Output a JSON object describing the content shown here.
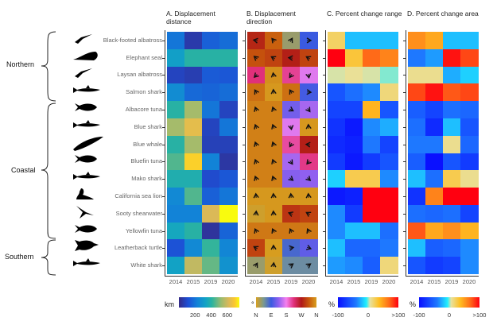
{
  "groups": [
    "Northern",
    "Coastal",
    "Southern"
  ],
  "species": [
    "Black-footed albatross",
    "Elephant seal",
    "Laysan albatross",
    "Salmon shark",
    "Albacore tuna",
    "Blue shark",
    "Blue whale",
    "Bluefin tuna",
    "Mako shark",
    "California sea lion",
    "Sooty shearwater",
    "Yellowfin tuna",
    "Leatherback turtle",
    "White shark"
  ],
  "species_icons": [
    "albatross-silhouette-icon",
    "elephant-seal-silhouette-icon",
    "albatross-silhouette-icon",
    "shark-silhouette-icon",
    "tuna-silhouette-icon",
    "shark-silhouette-icon",
    "whale-silhouette-icon",
    "tuna-silhouette-icon",
    "shark-silhouette-icon",
    "sea-lion-silhouette-icon",
    "shearwater-silhouette-icon",
    "tuna-silhouette-icon",
    "turtle-silhouette-icon",
    "shark-silhouette-icon"
  ],
  "years": [
    "2014",
    "2015",
    "2019",
    "2020"
  ],
  "chart_data": [
    {
      "type": "heatmap",
      "title": "A. Displacement distance",
      "unit": "km",
      "colormap": "parula",
      "range": [
        0,
        750
      ],
      "legend_ticks": [
        "200",
        "400",
        "600"
      ],
      "legend_tick_values": [
        200,
        400,
        600
      ],
      "values": [
        [
          200,
          50,
          150,
          180
        ],
        [
          320,
          400,
          400,
          400
        ],
        [
          80,
          60,
          140,
          130
        ],
        [
          260,
          170,
          160,
          180
        ],
        [
          400,
          540,
          200,
          80
        ],
        [
          540,
          640,
          80,
          200
        ],
        [
          400,
          540,
          70,
          70
        ],
        [
          450,
          700,
          230,
          40
        ],
        [
          380,
          380,
          100,
          130
        ],
        [
          250,
          450,
          150,
          200
        ],
        [
          230,
          230,
          620,
          750
        ],
        [
          350,
          400,
          30,
          160
        ],
        [
          120,
          250,
          420,
          240
        ],
        [
          330,
          580,
          470,
          280
        ]
      ]
    },
    {
      "type": "heatmap",
      "title": "B. Displacement direction",
      "unit": "°",
      "colormap": "cyclic",
      "range": [
        0,
        360
      ],
      "legend_ticks": [
        "N",
        "E",
        "S",
        "W",
        "N"
      ],
      "legend_tick_values": [
        0,
        90,
        180,
        270,
        360
      ],
      "values": [
        [
          280,
          320,
          30,
          90
        ],
        [
          310,
          300,
          275,
          300
        ],
        [
          225,
          350,
          215,
          170
        ],
        [
          330,
          355,
          330,
          95
        ],
        [
          340,
          340,
          120,
          145
        ],
        [
          340,
          340,
          170,
          355
        ],
        [
          340,
          340,
          210,
          275
        ],
        [
          340,
          340,
          145,
          220
        ],
        [
          340,
          340,
          130,
          135
        ],
        [
          355,
          355,
          355,
          355
        ],
        [
          5,
          355,
          290,
          300
        ],
        [
          335,
          335,
          335,
          335
        ],
        [
          300,
          358,
          80,
          110
        ],
        [
          30,
          5,
          55,
          55
        ]
      ]
    },
    {
      "type": "heatmap",
      "title": "C. Percent change range",
      "unit": "%",
      "colormap": "diverging",
      "range": [
        -100,
        100
      ],
      "legend_ticks": [
        "-100",
        "0",
        ">100"
      ],
      "legend_tick_values": [
        -100,
        0,
        100
      ],
      "values": [
        [
          20,
          -20,
          -20,
          -20
        ],
        [
          150,
          30,
          70,
          60
        ],
        [
          5,
          8,
          5,
          0
        ],
        [
          -60,
          -45,
          -35,
          15
        ],
        [
          -70,
          -70,
          40,
          -60
        ],
        [
          -80,
          -95,
          -35,
          -25
        ],
        [
          -85,
          -90,
          -40,
          -70
        ],
        [
          -75,
          -95,
          -75,
          -60
        ],
        [
          -15,
          25,
          25,
          -35
        ],
        [
          -95,
          -90,
          150,
          150
        ],
        [
          -35,
          -75,
          150,
          150
        ],
        [
          -35,
          -20,
          -20,
          -45
        ],
        [
          -20,
          -50,
          -50,
          -40
        ],
        [
          -30,
          -35,
          -55,
          15
        ]
      ]
    },
    {
      "type": "heatmap",
      "title": "D. Percent change area",
      "unit": "%",
      "colormap": "diverging",
      "range": [
        -100,
        100
      ],
      "legend_ticks": [
        "-100",
        "0",
        ">100"
      ],
      "legend_tick_values": [
        -100,
        0,
        100
      ],
      "values": [
        [
          55,
          45,
          -20,
          -20
        ],
        [
          -40,
          -30,
          95,
          80
        ],
        [
          10,
          10,
          -25,
          -15
        ],
        [
          80,
          95,
          75,
          80
        ],
        [
          -55,
          -70,
          -45,
          -50
        ],
        [
          -45,
          -85,
          -20,
          -60
        ],
        [
          -40,
          -40,
          10,
          -50
        ],
        [
          -55,
          -100,
          -60,
          -75
        ],
        [
          -20,
          -45,
          25,
          10
        ],
        [
          -80,
          60,
          150,
          150
        ],
        [
          -45,
          -50,
          -45,
          -70
        ],
        [
          75,
          45,
          55,
          40
        ],
        [
          -20,
          -55,
          -50,
          -35
        ],
        [
          -60,
          -75,
          -70,
          -35
        ]
      ]
    }
  ]
}
